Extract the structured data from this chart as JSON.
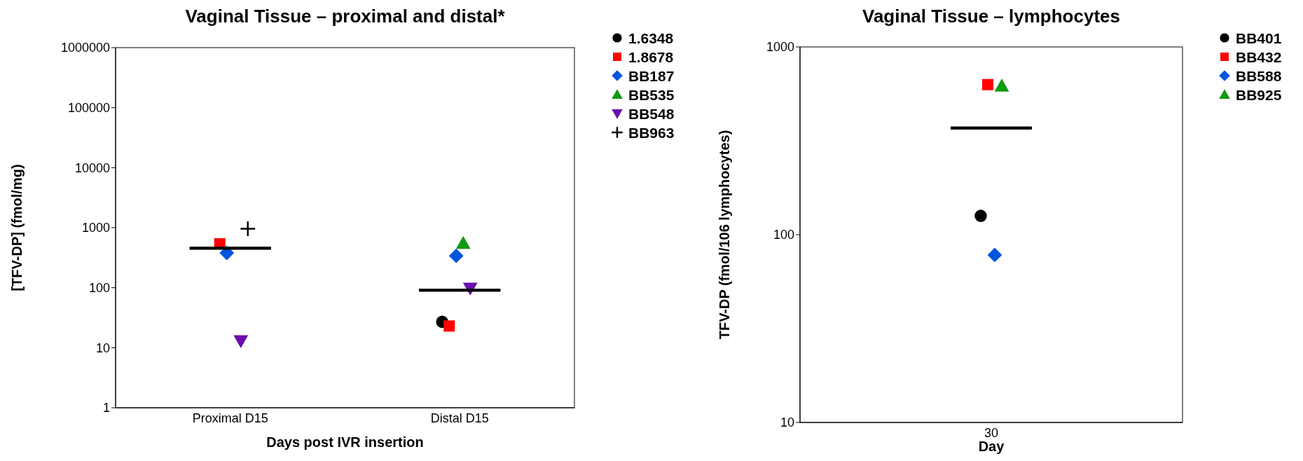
{
  "chart_data": [
    {
      "type": "scatter",
      "title": "Vaginal Tissue – proximal and distal*",
      "xlabel": "Days post IVR insertion",
      "ylabel": "[TFV-DP] (fmol/mg)",
      "categories": [
        "Proximal D15",
        "Distal D15"
      ],
      "log": true,
      "ylim": [
        1,
        1000000
      ],
      "yticks": [
        1,
        10,
        100,
        1000,
        10000,
        100000,
        1000000
      ],
      "legend": "right",
      "series": [
        {
          "name": "1.6348",
          "color": "#000000",
          "marker": "circle",
          "values": [
            null,
            27
          ]
        },
        {
          "name": "1.8678",
          "color": "#ff0000",
          "marker": "square",
          "values": [
            540,
            23
          ]
        },
        {
          "name": "BB187",
          "color": "#0055dd",
          "marker": "diamond",
          "values": [
            380,
            340
          ]
        },
        {
          "name": "BB535",
          "color": "#119911",
          "marker": "triangle",
          "values": [
            null,
            550
          ]
        },
        {
          "name": "BB548",
          "color": "#6a0dad",
          "marker": "triangle-down",
          "values": [
            13,
            98
          ]
        },
        {
          "name": "BB963",
          "color": "#000000",
          "marker": "cross",
          "values": [
            960,
            null
          ]
        },
        {
          "type": "box",
          "color": "#000000",
          "boxes": [
            {
              "low": 455,
              "q1": 455,
              "median": 455,
              "q3": 455,
              "high": 455
            },
            {
              "low": 91,
              "q1": 91,
              "median": 91,
              "q3": 91,
              "high": 91
            }
          ]
        }
      ]
    },
    {
      "type": "scatter",
      "title": "Vaginal Tissue – lymphocytes",
      "xlabel": "Day",
      "ylabel": "TFV-DP (fmol/106 lymphocytes)",
      "categories": [
        "30"
      ],
      "log": true,
      "ylim": [
        10,
        1000
      ],
      "yticks": [
        10,
        100,
        1000
      ],
      "legend": "right",
      "series": [
        {
          "name": "BB401",
          "color": "#000000",
          "marker": "circle",
          "values": [
            126
          ]
        },
        {
          "name": "BB432",
          "color": "#ff0000",
          "marker": "square",
          "values": [
            630
          ]
        },
        {
          "name": "BB588",
          "color": "#0055dd",
          "marker": "diamond",
          "values": [
            78
          ]
        },
        {
          "name": "BB925",
          "color": "#119911",
          "marker": "triangle",
          "values": [
            620
          ]
        },
        {
          "type": "box",
          "color": "#000000",
          "boxes": [
            {
              "low": 370,
              "q1": 370,
              "median": 370,
              "q3": 370,
              "high": 370
            }
          ]
        }
      ]
    }
  ]
}
